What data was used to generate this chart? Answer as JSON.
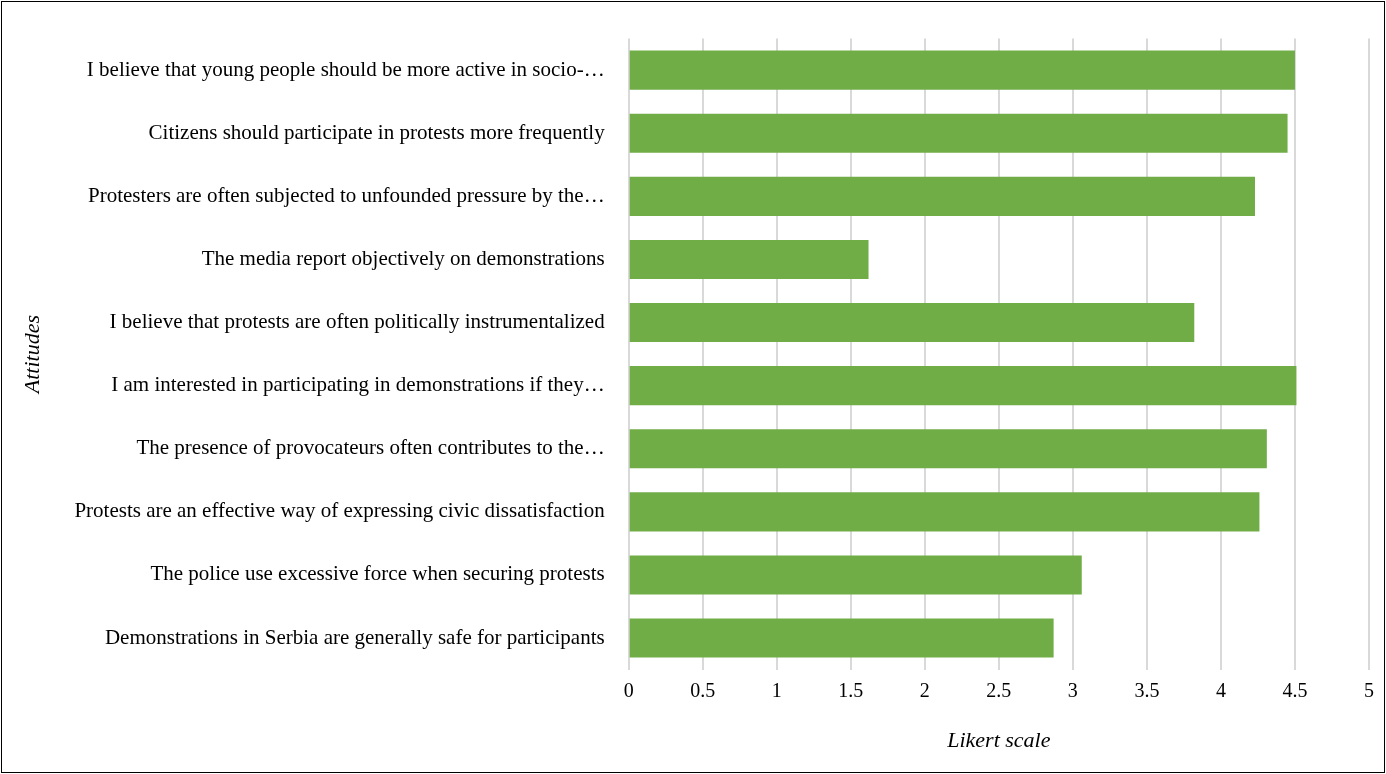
{
  "chart_data": {
    "type": "bar",
    "orientation": "horizontal",
    "xlabel": "Likert scale",
    "ylabel": "Attitudes",
    "categories": [
      "I believe that young people should be more active in socio-…",
      "Citizens should participate in protests more frequently",
      "Protesters are often subjected to unfounded pressure by the…",
      "The media report objectively on demonstrations",
      "I believe that protests are often politically instrumentalized",
      "I am interested in participating in demonstrations if they…",
      "The presence of provocateurs often contributes to the…",
      "Protests are an effective way of expressing civic dissatisfaction",
      "The police use excessive force when securing protests",
      "Demonstrations in Serbia are generally safe for participants"
    ],
    "series": [
      {
        "color": "#70ad47",
        "values": [
          4.5,
          4.45,
          4.23,
          1.62,
          3.82,
          4.51,
          4.31,
          4.26,
          3.06,
          2.87
        ]
      }
    ],
    "xlim": [
      0,
      5
    ],
    "xticks": [
      0,
      0.5,
      1,
      1.5,
      2,
      2.5,
      3,
      3.5,
      4,
      4.5,
      5
    ],
    "grid": "x",
    "legend": false
  }
}
